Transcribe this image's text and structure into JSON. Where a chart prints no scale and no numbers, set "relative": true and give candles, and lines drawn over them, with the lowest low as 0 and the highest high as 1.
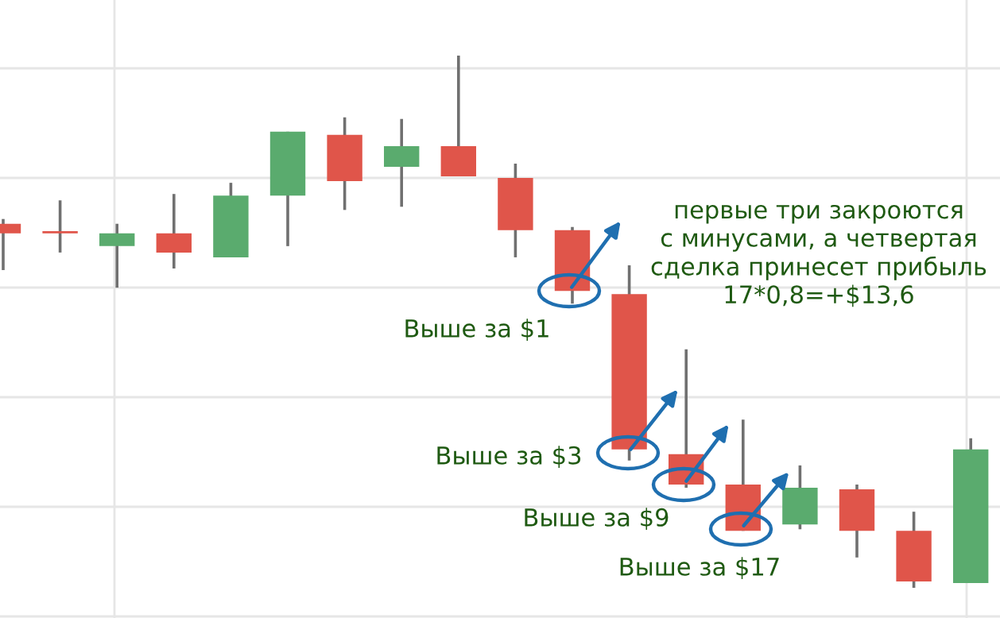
{
  "chart_data": {
    "type": "candlestick",
    "relative": true,
    "grid": true,
    "categories": [
      null,
      null,
      null,
      null,
      null,
      null,
      null,
      null,
      null,
      null,
      null,
      null,
      null,
      null,
      null,
      null,
      null,
      null
    ],
    "ohlc": [
      [
        0.684,
        0.693,
        0.597,
        0.666
      ],
      [
        0.666,
        0.728,
        0.63,
        0.666
      ],
      [
        0.642,
        0.684,
        0.564,
        0.666
      ],
      [
        0.666,
        0.74,
        0.6,
        0.63
      ],
      [
        0.621,
        0.761,
        0.621,
        0.737
      ],
      [
        0.737,
        0.857,
        0.642,
        0.857
      ],
      [
        0.851,
        0.884,
        0.71,
        0.764
      ],
      [
        0.791,
        0.881,
        0.716,
        0.83
      ],
      [
        0.83,
        1.0,
        0.773,
        0.773
      ],
      [
        0.77,
        0.797,
        0.621,
        0.672
      ],
      [
        0.672,
        0.678,
        0.534,
        0.558
      ],
      [
        0.552,
        0.606,
        0.239,
        0.26
      ],
      [
        0.251,
        0.448,
        0.188,
        0.194
      ],
      [
        0.194,
        0.316,
        0.107,
        0.107
      ],
      [
        0.119,
        0.23,
        0.11,
        0.188
      ],
      [
        0.185,
        0.194,
        0.057,
        0.107
      ],
      [
        0.107,
        0.143,
        0.0,
        0.012
      ],
      [
        0.009,
        0.281,
        0.009,
        0.26
      ]
    ],
    "colors": [
      "#e0554a",
      "#e0554a",
      "#5aab6e",
      "#e0554a",
      "#5aab6e",
      "#5aab6e",
      "#e0554a",
      "#5aab6e",
      "#e0554a",
      "#e0554a",
      "#e0554a",
      "#e0554a",
      "#e0554a",
      "#e0554a",
      "#5aab6e",
      "#e0554a",
      "#e0554a",
      "#5aab6e"
    ],
    "annotations": [
      "первые три закроются\nс минусами, а четвертая\nсделка принесет прибыль\n17*0,8=+$13,6",
      "Выше за $1",
      "Выше за $3",
      "Выше за $9",
      "Выше за $17"
    ]
  }
}
